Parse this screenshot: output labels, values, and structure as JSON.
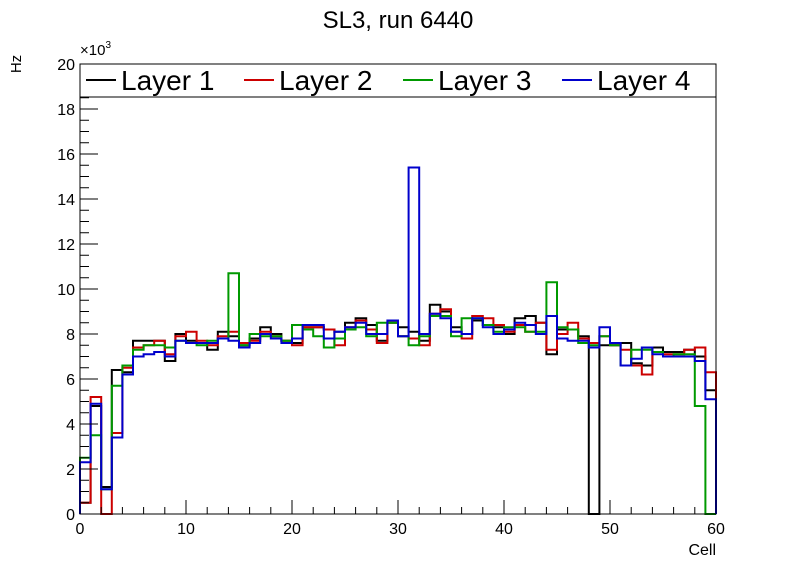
{
  "chart_data": {
    "type": "step-histogram",
    "title": "SL3, run 6440",
    "xlabel": "Cell",
    "ylabel": "Hz",
    "y_multiplier_label": "×10",
    "y_multiplier_exponent": "3",
    "xlim": [
      0,
      60
    ],
    "ylim": [
      0,
      20
    ],
    "x_ticks": [
      0,
      10,
      20,
      30,
      40,
      50,
      60
    ],
    "y_ticks": [
      0,
      2,
      4,
      6,
      8,
      10,
      12,
      14,
      16,
      18,
      20
    ],
    "legend_position": "top",
    "bin_width": 1,
    "series": [
      {
        "name": "Layer 1",
        "color": "#000000",
        "values": [
          0.5,
          4.8,
          1.2,
          6.4,
          6.3,
          7.7,
          7.7,
          7.7,
          6.8,
          8.0,
          7.7,
          7.6,
          7.3,
          8.1,
          7.9,
          7.5,
          7.8,
          8.3,
          8.0,
          7.7,
          7.6,
          8.3,
          8.3,
          8.2,
          8.1,
          8.5,
          8.7,
          8.4,
          7.7,
          8.5,
          8.3,
          8.1,
          7.7,
          9.3,
          9.0,
          8.3,
          8.0,
          8.6,
          8.4,
          8.3,
          8.0,
          8.7,
          8.8,
          8.5,
          7.1,
          8.2,
          8.2,
          7.9,
          0.0,
          7.5,
          7.5,
          7.6,
          6.7,
          6.6,
          7.4,
          7.2,
          7.2,
          7.3,
          7.0,
          5.5
        ]
      },
      {
        "name": "Layer 2",
        "color": "#cc0000",
        "values": [
          0.5,
          5.2,
          0.0,
          3.6,
          6.5,
          7.4,
          7.5,
          7.7,
          7.1,
          7.9,
          8.1,
          7.7,
          7.5,
          7.9,
          8.1,
          7.6,
          7.7,
          8.1,
          7.9,
          7.7,
          7.5,
          8.3,
          8.3,
          8.2,
          7.5,
          8.3,
          8.6,
          8.2,
          7.6,
          8.5,
          7.9,
          7.8,
          7.5,
          8.9,
          9.1,
          8.1,
          7.8,
          8.8,
          8.7,
          8.4,
          8.1,
          8.4,
          8.1,
          8.5,
          7.3,
          8.0,
          8.5,
          7.8,
          7.6,
          7.9,
          7.5,
          7.3,
          6.6,
          6.2,
          7.2,
          7.1,
          7.1,
          7.3,
          7.4,
          6.3
        ]
      },
      {
        "name": "Layer 3",
        "color": "#009900",
        "values": [
          2.5,
          3.5,
          1.1,
          5.7,
          6.6,
          7.3,
          7.5,
          7.5,
          7.4,
          7.7,
          7.6,
          7.5,
          7.7,
          7.8,
          10.7,
          7.5,
          8.0,
          7.9,
          7.9,
          7.7,
          8.4,
          8.2,
          7.9,
          7.4,
          7.8,
          8.2,
          8.3,
          7.9,
          8.5,
          8.5,
          7.9,
          7.5,
          7.9,
          8.8,
          8.8,
          7.9,
          8.7,
          8.7,
          8.4,
          8.1,
          8.3,
          8.3,
          8.1,
          8.1,
          10.3,
          8.3,
          8.2,
          7.6,
          7.5,
          7.9,
          7.5,
          6.6,
          7.3,
          7.3,
          7.2,
          7.0,
          7.1,
          7.1,
          4.8,
          0.0
        ]
      },
      {
        "name": "Layer 4",
        "color": "#0000cc",
        "values": [
          2.3,
          4.9,
          1.1,
          3.4,
          6.2,
          7.0,
          7.1,
          7.2,
          7.0,
          7.7,
          7.6,
          7.6,
          7.6,
          7.8,
          7.7,
          7.4,
          7.6,
          8.0,
          7.8,
          7.6,
          7.8,
          8.4,
          8.4,
          7.8,
          8.1,
          8.3,
          8.5,
          8.0,
          8.0,
          8.6,
          7.9,
          15.4,
          8.0,
          8.9,
          8.7,
          8.1,
          8.0,
          8.7,
          8.3,
          8.0,
          8.2,
          8.5,
          8.4,
          8.0,
          8.8,
          7.8,
          7.7,
          7.7,
          7.4,
          8.3,
          7.6,
          6.6,
          6.9,
          7.4,
          7.1,
          7.0,
          7.0,
          7.0,
          6.8,
          5.1
        ]
      }
    ]
  }
}
